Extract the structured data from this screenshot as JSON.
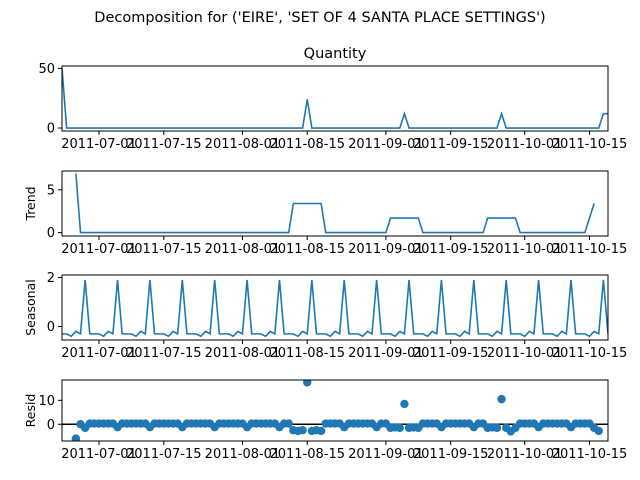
{
  "figure": {
    "title": "Decomposition for ('EIRE', 'SET OF 4 SANTA PLACE SETTINGS')"
  },
  "colors": {
    "line": "#1f77b4",
    "zero_line": "#000000",
    "axes": "#000000"
  },
  "chart_data": [
    {
      "type": "line",
      "panel": "observed",
      "title": "Quantity",
      "ylabel": "",
      "x_range": [
        "2011-06-23",
        "2011-10-19"
      ],
      "ylim": [
        -2.5,
        52
      ],
      "yticks": [
        0,
        50
      ],
      "xtick_labels": [
        "2011-07-01",
        "2011-07-15",
        "2011-08-01",
        "2011-08-15",
        "2011-09-01",
        "2011-09-15",
        "2011-10-01",
        "2011-10-15"
      ],
      "points": [
        [
          "2011-06-23",
          50
        ],
        [
          "2011-06-24",
          0
        ],
        [
          "2011-08-14",
          0
        ],
        [
          "2011-08-15",
          24
        ],
        [
          "2011-08-16",
          0
        ],
        [
          "2011-09-04",
          0
        ],
        [
          "2011-09-05",
          12
        ],
        [
          "2011-09-06",
          0
        ],
        [
          "2011-09-25",
          0
        ],
        [
          "2011-09-26",
          12
        ],
        [
          "2011-09-27",
          0
        ],
        [
          "2011-10-17",
          0
        ],
        [
          "2011-10-18",
          12
        ],
        [
          "2011-10-19",
          12
        ]
      ]
    },
    {
      "type": "line",
      "panel": "trend",
      "title": "",
      "ylabel": "Trend",
      "x_range": [
        "2011-06-23",
        "2011-10-19"
      ],
      "ylim": [
        -0.4,
        7.2
      ],
      "yticks": [
        0,
        5
      ],
      "xtick_labels": [
        "2011-07-01",
        "2011-07-15",
        "2011-08-01",
        "2011-08-15",
        "2011-09-01",
        "2011-09-15",
        "2011-10-01",
        "2011-10-15"
      ],
      "points": [
        [
          "2011-06-26",
          6.9
        ],
        [
          "2011-06-27",
          0
        ],
        [
          "2011-08-11",
          0
        ],
        [
          "2011-08-12",
          3.4
        ],
        [
          "2011-08-18",
          3.4
        ],
        [
          "2011-08-19",
          0
        ],
        [
          "2011-09-01",
          0
        ],
        [
          "2011-09-02",
          1.7
        ],
        [
          "2011-09-08",
          1.7
        ],
        [
          "2011-09-09",
          0
        ],
        [
          "2011-09-22",
          0
        ],
        [
          "2011-09-23",
          1.7
        ],
        [
          "2011-09-29",
          1.7
        ],
        [
          "2011-09-30",
          0
        ],
        [
          "2011-10-14",
          0
        ],
        [
          "2011-10-16",
          3.4
        ]
      ]
    },
    {
      "type": "line",
      "panel": "seasonal",
      "title": "",
      "ylabel": "Seasonal",
      "x_range": [
        "2011-06-23",
        "2011-10-19"
      ],
      "ylim": [
        -0.55,
        2.1
      ],
      "yticks": [
        0,
        2
      ],
      "xtick_labels": [
        "2011-07-01",
        "2011-07-15",
        "2011-08-01",
        "2011-08-15",
        "2011-09-01",
        "2011-09-15",
        "2011-10-01",
        "2011-10-15"
      ],
      "period_start": "2011-06-23",
      "period_pattern": [
        -0.3,
        -0.3,
        -0.4,
        -0.2,
        -0.3,
        1.9,
        -0.3
      ]
    },
    {
      "type": "scatter",
      "panel": "resid",
      "title": "",
      "ylabel": "Resid",
      "x_range": [
        "2011-06-23",
        "2011-10-19"
      ],
      "ylim": [
        -7,
        18.5
      ],
      "yticks": [
        0,
        10
      ],
      "xtick_labels": [
        "2011-07-01",
        "2011-07-15",
        "2011-08-01",
        "2011-08-15",
        "2011-09-01",
        "2011-09-15",
        "2011-10-01",
        "2011-10-15"
      ],
      "zero_line": true,
      "baseline_mode": "seasonal_mirror",
      "point_overrides": [
        [
          "2011-06-26",
          -6
        ],
        [
          "2011-06-27",
          0
        ],
        [
          "2011-06-28",
          -1.5
        ],
        [
          "2011-08-12",
          -2.5
        ],
        [
          "2011-08-13",
          -2.8
        ],
        [
          "2011-08-14",
          -2.5
        ],
        [
          "2011-08-15",
          17.5
        ],
        [
          "2011-08-16",
          -2.8
        ],
        [
          "2011-08-17",
          -2.5
        ],
        [
          "2011-08-18",
          -2.8
        ],
        [
          "2011-09-02",
          -1.5
        ],
        [
          "2011-09-03",
          -1.3
        ],
        [
          "2011-09-04",
          -1.5
        ],
        [
          "2011-09-05",
          8.5
        ],
        [
          "2011-09-06",
          -1.5
        ],
        [
          "2011-09-07",
          -1.3
        ],
        [
          "2011-09-08",
          -1.5
        ],
        [
          "2011-09-23",
          -1.5
        ],
        [
          "2011-09-24",
          -1.3
        ],
        [
          "2011-09-25",
          -1.5
        ],
        [
          "2011-09-26",
          10.5
        ],
        [
          "2011-09-27",
          -1.5
        ],
        [
          "2011-09-28",
          -3
        ],
        [
          "2011-09-29",
          -1.5
        ],
        [
          "2011-10-16",
          -1.5
        ],
        [
          "2011-10-17",
          -2.8
        ]
      ],
      "x_start": "2011-06-26",
      "x_end": "2011-10-17"
    }
  ]
}
